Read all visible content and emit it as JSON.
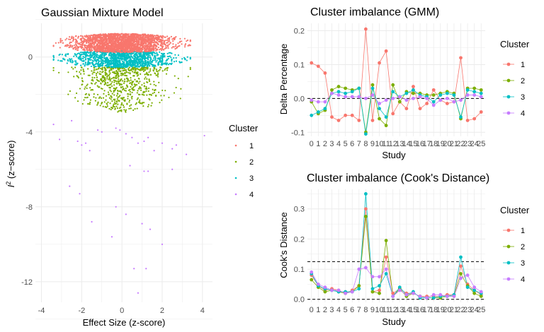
{
  "colors": {
    "c1": "#F8766D",
    "c2": "#7CAE00",
    "c3": "#00BFC4",
    "c4": "#C77CFF",
    "grid": "#ebebeb",
    "text": "#222222",
    "axis_text": "#4d4d4d"
  },
  "chart_data": [
    {
      "type": "scatter",
      "title": "Gaussian Mixture Model",
      "xlabel": "Effect Size (z-score)",
      "ylabel_main": "I",
      "ylabel_sup": "2",
      "ylabel_rest": " (z−score)",
      "xlim": [
        -4.3,
        4.5
      ],
      "ylim": [
        -13.1,
        1.8
      ],
      "xticks": [
        -4,
        -2,
        0,
        2,
        4
      ],
      "xtick_labels": [
        "-4",
        "-2",
        "0",
        "2",
        "4"
      ],
      "yticks": [
        0,
        -4,
        -8,
        -12
      ],
      "ytick_labels": [
        "0",
        "-4",
        "-8",
        "-12"
      ],
      "legend": {
        "title": "Cluster",
        "entries": [
          "1",
          "2",
          "3",
          "4"
        ],
        "placement": "right"
      },
      "clusters": [
        {
          "name": "1",
          "cx": 0.0,
          "sx": 1.15,
          "y_min": 0.25,
          "y_max": 1.25,
          "n": 2200
        },
        {
          "name": "2",
          "cx": 0.0,
          "sx": 1.1,
          "y_min": -3.0,
          "y_max": -0.55,
          "n": 700
        },
        {
          "name": "3",
          "cx": 0.0,
          "sx": 1.2,
          "y_min": -0.55,
          "y_max": 0.35,
          "n": 1300
        },
        {
          "name": "4",
          "points": [
            [
              -2.5,
              -3.4
            ],
            [
              -3.4,
              -3.6
            ],
            [
              -3.1,
              -4.4
            ],
            [
              -2.2,
              -4.5
            ],
            [
              -1.8,
              -4.6
            ],
            [
              -2.0,
              -4.7
            ],
            [
              -1.6,
              -5.0
            ],
            [
              -1.2,
              -3.9
            ],
            [
              -1.0,
              -4.0
            ],
            [
              -0.3,
              -3.8
            ],
            [
              -0.1,
              -3.9
            ],
            [
              0.2,
              -4.1
            ],
            [
              0.5,
              -4.3
            ],
            [
              0.8,
              -4.6
            ],
            [
              1.1,
              -4.5
            ],
            [
              1.3,
              -4.3
            ],
            [
              1.6,
              -5.0
            ],
            [
              2.0,
              -4.6
            ],
            [
              2.5,
              -4.9
            ],
            [
              2.7,
              -4.7
            ],
            [
              3.2,
              -5.2
            ],
            [
              4.1,
              -4.2
            ],
            [
              0.4,
              -5.8
            ],
            [
              1.1,
              -6.1
            ],
            [
              1.3,
              -6.1
            ],
            [
              2.5,
              -6.0
            ],
            [
              -2.6,
              -6.9
            ],
            [
              -2.1,
              -7.3
            ],
            [
              -1.5,
              -8.8
            ],
            [
              -0.3,
              -8.0
            ],
            [
              0.2,
              -8.4
            ],
            [
              1.0,
              -8.9
            ],
            [
              -0.5,
              -9.6
            ],
            [
              1.4,
              -9.2
            ],
            [
              2.0,
              -10.0
            ],
            [
              0.6,
              -11.3
            ],
            [
              1.2,
              -11.3
            ],
            [
              0.8,
              -12.6
            ]
          ]
        }
      ]
    },
    {
      "type": "line",
      "title": "Cluster imbalance (GMM)",
      "xlabel": "Study",
      "ylabel": "Delta Percentage",
      "x": [
        0,
        1,
        2,
        3,
        4,
        5,
        6,
        7,
        8,
        9,
        10,
        11,
        12,
        13,
        14,
        15,
        16,
        17,
        18,
        19,
        20,
        21,
        22,
        23,
        24,
        25
      ],
      "xlim": [
        -0.6,
        25.6
      ],
      "ylim": [
        -0.112,
        0.222
      ],
      "yticks": [
        -0.1,
        0.0,
        0.1,
        0.2
      ],
      "ytick_labels": [
        "-0.1",
        "0.0",
        "0.1",
        "0.2"
      ],
      "reference_lines": [
        0
      ],
      "legend": {
        "title": "Cluster",
        "entries": [
          "1",
          "2",
          "3",
          "4"
        ],
        "placement": "right"
      },
      "series": [
        {
          "name": "1",
          "values": [
            0.105,
            0.095,
            0.075,
            -0.055,
            -0.065,
            -0.05,
            -0.05,
            -0.065,
            0.205,
            -0.065,
            0.105,
            0.14,
            -0.045,
            -0.01,
            -0.03,
            0.035,
            -0.03,
            -0.015,
            0.025,
            -0.005,
            -0.015,
            -0.01,
            0.12,
            -0.065,
            -0.06,
            -0.04
          ]
        },
        {
          "name": "2",
          "values": [
            -0.01,
            -0.045,
            -0.035,
            0.025,
            0.035,
            0.03,
            0.025,
            0.03,
            -0.1,
            0.04,
            -0.06,
            -0.08,
            0.04,
            -0.01,
            0.02,
            0.015,
            0.015,
            0.01,
            0.01,
            0.015,
            0.02,
            0.015,
            -0.06,
            0.03,
            0.03,
            0.025
          ]
        },
        {
          "name": "3",
          "values": [
            -0.05,
            -0.04,
            -0.03,
            0.015,
            0.02,
            0.015,
            0.02,
            0.03,
            -0.105,
            0.03,
            -0.03,
            -0.055,
            0.02,
            0.005,
            0.015,
            0.025,
            0.01,
            0.005,
            -0.01,
            0.01,
            0.015,
            0.01,
            -0.055,
            0.025,
            0.02,
            0.015
          ]
        },
        {
          "name": "4",
          "values": [
            -0.005,
            -0.01,
            -0.01,
            0.015,
            0.01,
            0.005,
            0.005,
            0.005,
            0.0,
            0.01,
            -0.015,
            -0.005,
            0.0,
            0.005,
            -0.005,
            0.0,
            0.005,
            0.0,
            -0.02,
            -0.005,
            0.0,
            -0.01,
            -0.005,
            0.01,
            0.01,
            0.005
          ]
        }
      ]
    },
    {
      "type": "line",
      "title": "Cluster imbalance (Cook's Distance)",
      "xlabel": "Study",
      "ylabel": "Cook's Distance",
      "x": [
        0,
        1,
        2,
        3,
        4,
        5,
        6,
        7,
        8,
        9,
        10,
        11,
        12,
        13,
        14,
        15,
        16,
        17,
        18,
        19,
        20,
        21,
        22,
        23,
        24,
        25
      ],
      "xlim": [
        -0.6,
        25.6
      ],
      "ylim": [
        -0.01,
        0.365
      ],
      "yticks": [
        0.0,
        0.1,
        0.2,
        0.3
      ],
      "ytick_labels": [
        "0.0",
        "0.1",
        "0.2",
        "0.3"
      ],
      "reference_lines": [
        0.125,
        0
      ],
      "legend": {
        "title": "Cluster",
        "entries": [
          "1",
          "2",
          "3",
          "4"
        ],
        "placement": "right"
      },
      "series": [
        {
          "name": "1",
          "values": [
            0.08,
            0.045,
            0.03,
            0.035,
            0.03,
            0.02,
            0.03,
            0.045,
            0.3,
            0.025,
            0.03,
            0.14,
            0.02,
            0.035,
            0.02,
            0.02,
            0.01,
            0.01,
            0.01,
            0.01,
            0.015,
            0.015,
            0.11,
            0.05,
            0.03,
            0.015
          ]
        },
        {
          "name": "2",
          "values": [
            0.065,
            0.04,
            0.025,
            0.03,
            0.025,
            0.02,
            0.025,
            0.045,
            0.275,
            0.025,
            0.02,
            0.195,
            0.01,
            0.035,
            0.01,
            0.02,
            0.01,
            0.005,
            0.005,
            0.005,
            0.01,
            0.01,
            0.085,
            0.045,
            0.02,
            0.01
          ]
        },
        {
          "name": "3",
          "values": [
            0.085,
            0.045,
            0.035,
            0.03,
            0.025,
            0.025,
            0.025,
            0.035,
            0.35,
            0.035,
            0.045,
            0.085,
            0.01,
            0.04,
            0.015,
            0.025,
            0.005,
            0.005,
            0.005,
            0.01,
            0.01,
            0.015,
            0.14,
            0.04,
            0.03,
            0.02
          ]
        },
        {
          "name": "4",
          "values": [
            0.09,
            0.05,
            0.04,
            0.03,
            0.03,
            0.02,
            0.025,
            0.1,
            0.105,
            0.075,
            0.075,
            0.1,
            0.01,
            0.03,
            0.015,
            0.02,
            0.01,
            0.005,
            0.015,
            0.015,
            0.01,
            0.01,
            0.07,
            0.08,
            0.04,
            0.025
          ]
        }
      ]
    }
  ]
}
